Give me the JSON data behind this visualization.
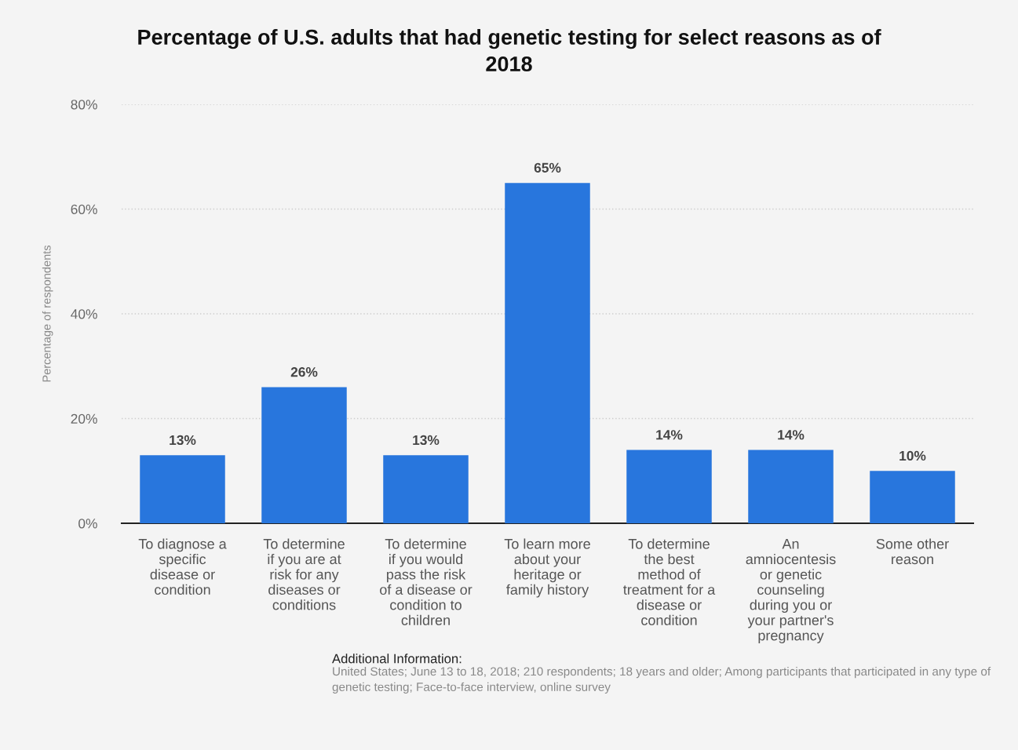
{
  "chart_data": {
    "type": "bar",
    "title": "Percentage of U.S. adults that had genetic testing for select reasons as of\n2018",
    "ylabel": "Percentage of respondents",
    "categories": [
      "To diagnose a\nspecific\ndisease or\ncondition",
      "To determine\nif you are at\nrisk for any\ndiseases or\nconditions",
      "To determine\nif you would\npass the risk\nof a disease or\ncondition to\nchildren",
      "To learn more\nabout your\nheritage or\nfamily history",
      "To determine\nthe best\nmethod of\ntreatment for a\ndisease or\ncondition",
      "An\namniocentesis\nor genetic\ncounseling\nduring you or\nyour partner's\npregnancy",
      "Some other\nreason"
    ],
    "values": [
      13,
      26,
      13,
      65,
      14,
      14,
      10
    ],
    "value_labels": [
      "13%",
      "26%",
      "13%",
      "65%",
      "14%",
      "14%",
      "10%"
    ],
    "color": "#2876dd",
    "ylim": [
      0,
      80
    ],
    "yticks": [
      {
        "value": 0,
        "label": "0%"
      },
      {
        "value": 20,
        "label": "20%"
      },
      {
        "value": 40,
        "label": "40%"
      },
      {
        "value": 60,
        "label": "60%"
      },
      {
        "value": 80,
        "label": "80%"
      }
    ],
    "grid": "y",
    "annotations": [
      "Additional Information:",
      "United States; June 13 to 18, 2018; 210 respondents; 18 years and older; Among participants that participated in any type of genetic testing; Face-to-face interview, online survey"
    ]
  }
}
